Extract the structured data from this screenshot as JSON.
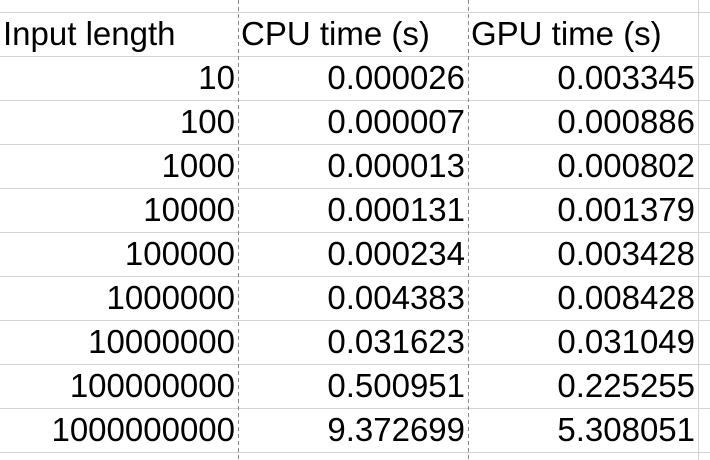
{
  "table": {
    "header": [
      "Input length",
      "CPU time (s)",
      "GPU time (s)"
    ],
    "rows": [
      [
        "10",
        "0.000026",
        "0.003345"
      ],
      [
        "100",
        "0.000007",
        "0.000886"
      ],
      [
        "1000",
        "0.000013",
        "0.000802"
      ],
      [
        "10000",
        "0.000131",
        "0.001379"
      ],
      [
        "100000",
        "0.000234",
        "0.003428"
      ],
      [
        "1000000",
        "0.004383",
        "0.008428"
      ],
      [
        "10000000",
        "0.031623",
        "0.031049"
      ],
      [
        "100000000",
        "0.500951",
        "0.225255"
      ],
      [
        "1000000000",
        "9.372699",
        "5.308051"
      ]
    ]
  }
}
